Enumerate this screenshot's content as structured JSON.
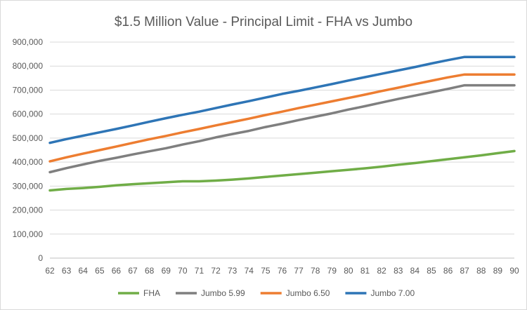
{
  "chart_data": {
    "type": "line",
    "title": "$1.5 Million Value - Principal Limit - FHA vs Jumbo",
    "xlabel": "",
    "ylabel": "",
    "x": [
      62,
      63,
      64,
      65,
      66,
      67,
      68,
      69,
      70,
      71,
      72,
      73,
      74,
      75,
      76,
      77,
      78,
      79,
      80,
      81,
      82,
      83,
      84,
      85,
      86,
      87,
      88,
      89,
      90
    ],
    "ylim": [
      0,
      900000
    ],
    "y_ticks": [
      "0",
      "100,000",
      "200,000",
      "300,000",
      "400,000",
      "500,000",
      "600,000",
      "700,000",
      "800,000",
      "900,000"
    ],
    "grid": true,
    "legend_position": "bottom",
    "series": [
      {
        "name": "FHA",
        "color": "#70ad47",
        "values": [
          282000,
          288000,
          292000,
          297000,
          303000,
          308000,
          312000,
          316000,
          320000,
          320000,
          323000,
          327000,
          332000,
          338000,
          344000,
          350000,
          356000,
          362000,
          368000,
          374000,
          381000,
          389000,
          396000,
          404000,
          412000,
          420000,
          428000,
          437000,
          446000
        ]
      },
      {
        "name": "Jumbo 5.99",
        "color": "#7f7f7f",
        "values": [
          358000,
          375000,
          390000,
          405000,
          418000,
          432000,
          445000,
          458000,
          473000,
          487000,
          503000,
          517000,
          530000,
          546000,
          560000,
          575000,
          589000,
          603000,
          619000,
          633000,
          648000,
          663000,
          677000,
          691000,
          705000,
          720000,
          720000,
          720000,
          720000
        ]
      },
      {
        "name": "Jumbo 6.50",
        "color": "#ed7d31",
        "values": [
          403000,
          420000,
          435000,
          450000,
          465000,
          480000,
          495000,
          509000,
          524000,
          538000,
          553000,
          567000,
          581000,
          596000,
          610000,
          625000,
          639000,
          653000,
          667000,
          681000,
          696000,
          710000,
          725000,
          739000,
          753000,
          765000,
          765000,
          765000,
          765000
        ]
      },
      {
        "name": "Jumbo 7.00",
        "color": "#2e75b6",
        "values": [
          480000,
          496000,
          510000,
          524000,
          538000,
          553000,
          568000,
          583000,
          597000,
          610000,
          625000,
          640000,
          654000,
          669000,
          684000,
          697000,
          711000,
          725000,
          740000,
          754000,
          768000,
          782000,
          796000,
          811000,
          825000,
          838000,
          838000,
          838000,
          838000
        ]
      }
    ]
  }
}
